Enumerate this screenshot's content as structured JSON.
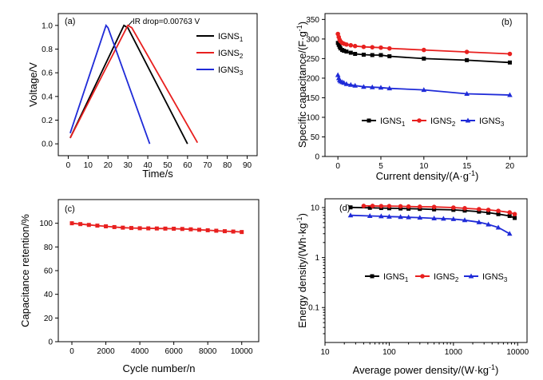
{
  "colors": {
    "black": "#000000",
    "red": "#e8201f",
    "blue": "#1f2bd8"
  },
  "chart_data": [
    {
      "id": "a",
      "type": "line",
      "panel_label": "(a)",
      "xlabel": "Time/s",
      "ylabel": "Voltage/V",
      "xlim": [
        -5,
        95
      ],
      "ylim": [
        -0.1,
        1.1
      ],
      "xticks": [
        0,
        10,
        20,
        30,
        40,
        50,
        60,
        70,
        80,
        90
      ],
      "yticks": [
        0.0,
        0.2,
        0.4,
        0.6,
        0.8,
        1.0
      ],
      "ytick_labels": [
        "0.0",
        "0.2",
        "0.4",
        "0.6",
        "0.8",
        "1.0"
      ],
      "annotation": "IR drop=0.00763 V",
      "legend": {
        "position": "top-right"
      },
      "series": [
        {
          "name": "IGNS",
          "sub": "1",
          "color": "#000000",
          "x": [
            1,
            28,
            30,
            60
          ],
          "y": [
            0.05,
            1.0,
            0.98,
            0.0
          ]
        },
        {
          "name": "IGNS",
          "sub": "2",
          "color": "#e8201f",
          "x": [
            1,
            30,
            32,
            65
          ],
          "y": [
            0.05,
            1.0,
            0.98,
            0.01
          ]
        },
        {
          "name": "IGNS",
          "sub": "3",
          "color": "#1f2bd8",
          "x": [
            1,
            19,
            20,
            41
          ],
          "y": [
            0.09,
            1.0,
            0.98,
            0.0
          ]
        }
      ]
    },
    {
      "id": "b",
      "type": "line",
      "panel_label": "(b)",
      "xlabel": "Current density/(A·g",
      "xlabel_sup": "-1",
      "xlabel_end": ")",
      "ylabel": "Specific capacitance/(F·g",
      "ylabel_sup": "-1",
      "ylabel_end": ")",
      "xlim": [
        -1.5,
        22
      ],
      "ylim": [
        0,
        365
      ],
      "xticks": [
        0,
        5,
        10,
        15,
        20
      ],
      "yticks": [
        0,
        50,
        100,
        150,
        200,
        250,
        300,
        350
      ],
      "legend": {
        "position": "center"
      },
      "series": [
        {
          "name": "IGNS",
          "sub": "1",
          "color": "#000000",
          "x": [
            0,
            0.1,
            0.2,
            0.3,
            0.5,
            0.7,
            1,
            1.5,
            2,
            3,
            4,
            5,
            6,
            10,
            15,
            20
          ],
          "y": [
            290,
            285,
            280,
            276,
            272,
            270,
            268,
            265,
            262,
            260,
            259,
            259,
            256,
            250,
            246,
            240
          ]
        },
        {
          "name": "IGNS",
          "sub": "2",
          "color": "#e8201f",
          "x": [
            0,
            0.1,
            0.2,
            0.3,
            0.5,
            0.7,
            1,
            1.5,
            2,
            3,
            4,
            5,
            6,
            10,
            15,
            20
          ],
          "y": [
            313,
            305,
            298,
            294,
            290,
            288,
            286,
            284,
            282,
            280,
            279,
            278,
            276,
            272,
            267,
            262
          ]
        },
        {
          "name": "IGNS",
          "sub": "3",
          "color": "#1f2bd8",
          "x": [
            0,
            0.1,
            0.2,
            0.3,
            0.5,
            0.7,
            1,
            1.5,
            2,
            3,
            4,
            5,
            6,
            10,
            15,
            20
          ],
          "y": [
            208,
            200,
            195,
            192,
            190,
            188,
            185,
            183,
            181,
            178,
            177,
            176,
            174,
            170,
            160,
            157
          ]
        }
      ]
    },
    {
      "id": "c",
      "type": "line",
      "panel_label": "(c)",
      "xlabel": "Cycle number/n",
      "ylabel": "Capacitance retention/%",
      "xlim": [
        -800,
        11000
      ],
      "ylim": [
        0,
        120
      ],
      "xticks": [
        0,
        2000,
        4000,
        6000,
        8000,
        10000
      ],
      "yticks": [
        0,
        20,
        40,
        60,
        80,
        100
      ],
      "series": [
        {
          "name": "",
          "color": "#e8201f",
          "x": [
            0,
            500,
            1000,
            1500,
            2000,
            2500,
            3000,
            3500,
            4000,
            4500,
            5000,
            5500,
            6000,
            6500,
            7000,
            7500,
            8000,
            8500,
            9000,
            9500,
            10000
          ],
          "y": [
            100,
            99.3,
            98.6,
            98.0,
            97.4,
            96.8,
            96.3,
            96.0,
            95.8,
            95.7,
            95.6,
            95.5,
            95.4,
            95.2,
            94.9,
            94.5,
            94.1,
            93.7,
            93.3,
            93.0,
            92.6
          ]
        }
      ]
    },
    {
      "id": "d",
      "type": "line",
      "panel_label": "(d)",
      "xlabel": "Average power density/(W·kg",
      "xlabel_sup": "-1",
      "xlabel_end": ")",
      "ylabel": "Energy density/(Wh·kg",
      "ylabel_sup": "-1",
      "ylabel_end": ")",
      "scale": "log-log",
      "xlim": [
        10,
        14000
      ],
      "ylim": [
        0.02,
        15
      ],
      "xticks": [
        10,
        100,
        1000,
        10000
      ],
      "yticks": [
        0.1,
        1,
        10
      ],
      "ytick_labels": [
        "0.1",
        "1",
        "10"
      ],
      "legend": {
        "position": "center"
      },
      "series": [
        {
          "name": "IGNS",
          "sub": "1",
          "color": "#000000",
          "x": [
            25,
            50,
            75,
            100,
            150,
            200,
            300,
            500,
            1000,
            1500,
            2500,
            3500,
            5000,
            7500,
            9000
          ],
          "y": [
            10.1,
            9.9,
            9.8,
            9.7,
            9.6,
            9.5,
            9.4,
            9.2,
            9.0,
            8.7,
            8.3,
            7.9,
            7.4,
            6.8,
            6.2
          ]
        },
        {
          "name": "IGNS",
          "sub": "2",
          "color": "#e8201f",
          "x": [
            40,
            55,
            75,
            100,
            150,
            200,
            300,
            500,
            1000,
            1500,
            2500,
            3500,
            5000,
            7500,
            9000
          ],
          "y": [
            10.8,
            10.8,
            10.7,
            10.7,
            10.6,
            10.5,
            10.4,
            10.3,
            10.0,
            9.7,
            9.3,
            9.0,
            8.6,
            8.0,
            7.4
          ]
        },
        {
          "name": "IGNS",
          "sub": "3",
          "color": "#1f2bd8",
          "x": [
            25,
            50,
            75,
            100,
            150,
            200,
            300,
            500,
            700,
            1000,
            1500,
            2500,
            3500,
            5000,
            7500
          ],
          "y": [
            7.0,
            6.8,
            6.7,
            6.6,
            6.5,
            6.4,
            6.3,
            6.1,
            6.0,
            5.9,
            5.6,
            5.1,
            4.6,
            4.0,
            3.0
          ]
        }
      ]
    }
  ]
}
